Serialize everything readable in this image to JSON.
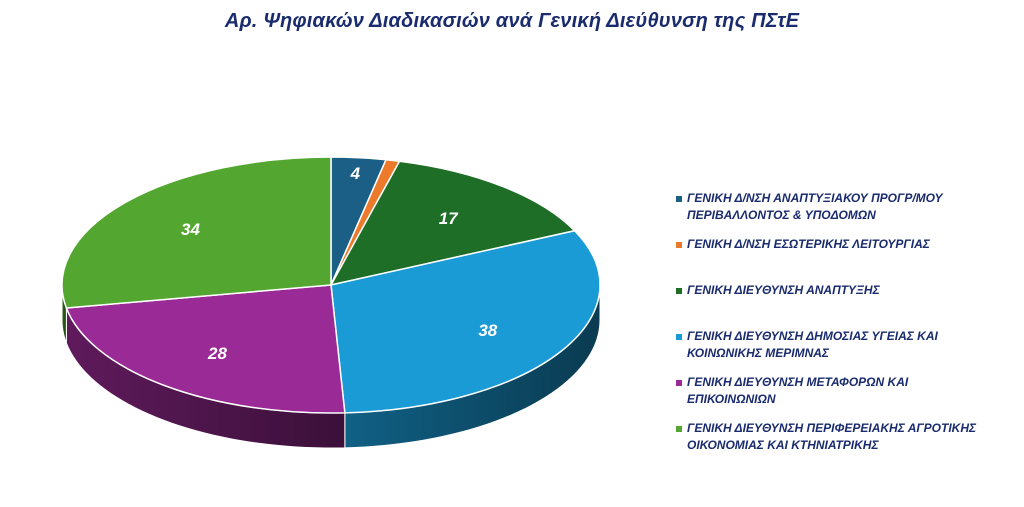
{
  "title": "Αρ. Ψηφιακών Διαδικασιών ανά Γενική Διεύθυνση της ΠΣτΕ",
  "chart_data": {
    "type": "pie",
    "title": "Αρ. Ψηφιακών Διαδικασιών ανά Γενική Διεύθυνση της ΠΣτΕ",
    "style": "3d",
    "legend_position": "right",
    "categories": [
      "ΓΕΝΙΚΗ Δ/ΝΣΗ ΑΝΑΠΤΥΞΙΑΚΟΥ ΠΡΟΓΡ/ΜΟΥ ΠΕΡΙΒΑΛΛΟΝΤΟΣ & ΥΠΟΔΟΜΩΝ",
      "ΓΕΝΙΚΗ Δ/ΝΣΗ ΕΣΩΤΕΡΙΚΗΣ ΛΕΙΤΟΥΡΓΙΑΣ",
      "ΓΕΝΙΚΗ ΔΙΕΥΘΥΝΣΗ ΑΝΑΠΤΥΞΗΣ",
      "ΓΕΝΙΚΗ ΔΙΕΥΘΥΝΣΗ ΔΗΜΟΣΙΑΣ ΥΓΕΙΑΣ ΚΑΙ ΚΟΙΝΩΝΙΚΗΣ ΜΕΡΙΜΝΑΣ",
      "ΓΕΝΙΚΗ ΔΙΕΥΘΥΝΣΗ ΜΕΤΑΦΟΡΩΝ ΚΑΙ ΕΠΙΚΟΙΝΩΝΙΩΝ",
      "ΓΕΝΙΚΗ ΔΙΕΥΘΥΝΣΗ ΠΕΡΙΦΕΡΕΙΑΚΗΣ ΑΓΡΟΤΙΚΗΣ ΟΙΚΟΝΟΜΙΑΣ ΚΑΙ ΚΤΗΝΙΑΤΡΙΚΗΣ"
    ],
    "values": [
      4,
      1,
      17,
      38,
      28,
      34
    ],
    "data_labels": [
      "4",
      "",
      "17",
      "38",
      "28",
      "34"
    ],
    "colors": [
      "#1c5f86",
      "#ec7a2a",
      "#1f6e27",
      "#1a9bd6",
      "#9a2a95",
      "#53a630"
    ]
  },
  "legend": [
    {
      "lines": [
        "ΓΕΝΙΚΗ Δ/ΝΣΗ ΑΝΑΠΤΥΞΙΑΚΟΥ ΠΡΟΓΡ/ΜΟΥ",
        "ΠΕΡΙΒΑΛΛΟΝΤΟΣ & ΥΠΟΔΟΜΩΝ"
      ]
    },
    {
      "lines": [
        "ΓΕΝΙΚΗ Δ/ΝΣΗ ΕΣΩΤΕΡΙΚΗΣ ΛΕΙΤΟΥΡΓΙΑΣ"
      ]
    },
    {
      "lines": [
        "ΓΕΝΙΚΗ ΔΙΕΥΘΥΝΣΗ ΑΝΑΠΤΥΞΗΣ"
      ]
    },
    {
      "lines": [
        "ΓΕΝΙΚΗ ΔΙΕΥΘΥΝΣΗ ΔΗΜΟΣΙΑΣ ΥΓΕΙΑΣ ΚΑΙ",
        "ΚΟΙΝΩΝΙΚΗΣ ΜΕΡΙΜΝΑΣ"
      ]
    },
    {
      "lines": [
        "ΓΕΝΙΚΗ ΔΙΕΥΘΥΝΣΗ ΜΕΤΑΦΟΡΩΝ ΚΑΙ",
        "ΕΠΙΚΟΙΝΩΝΙΩΝ"
      ]
    },
    {
      "lines": [
        "ΓΕΝΙΚΗ ΔΙΕΥΘΥΝΣΗ ΠΕΡΙΦΕΡΕΙΑΚΗΣ ΑΓΡΟΤΙΚΗΣ",
        "ΟΙΚΟΝΟΜΙΑΣ ΚΑΙ ΚΤΗΝΙΑΤΡΙΚΗΣ"
      ]
    }
  ]
}
